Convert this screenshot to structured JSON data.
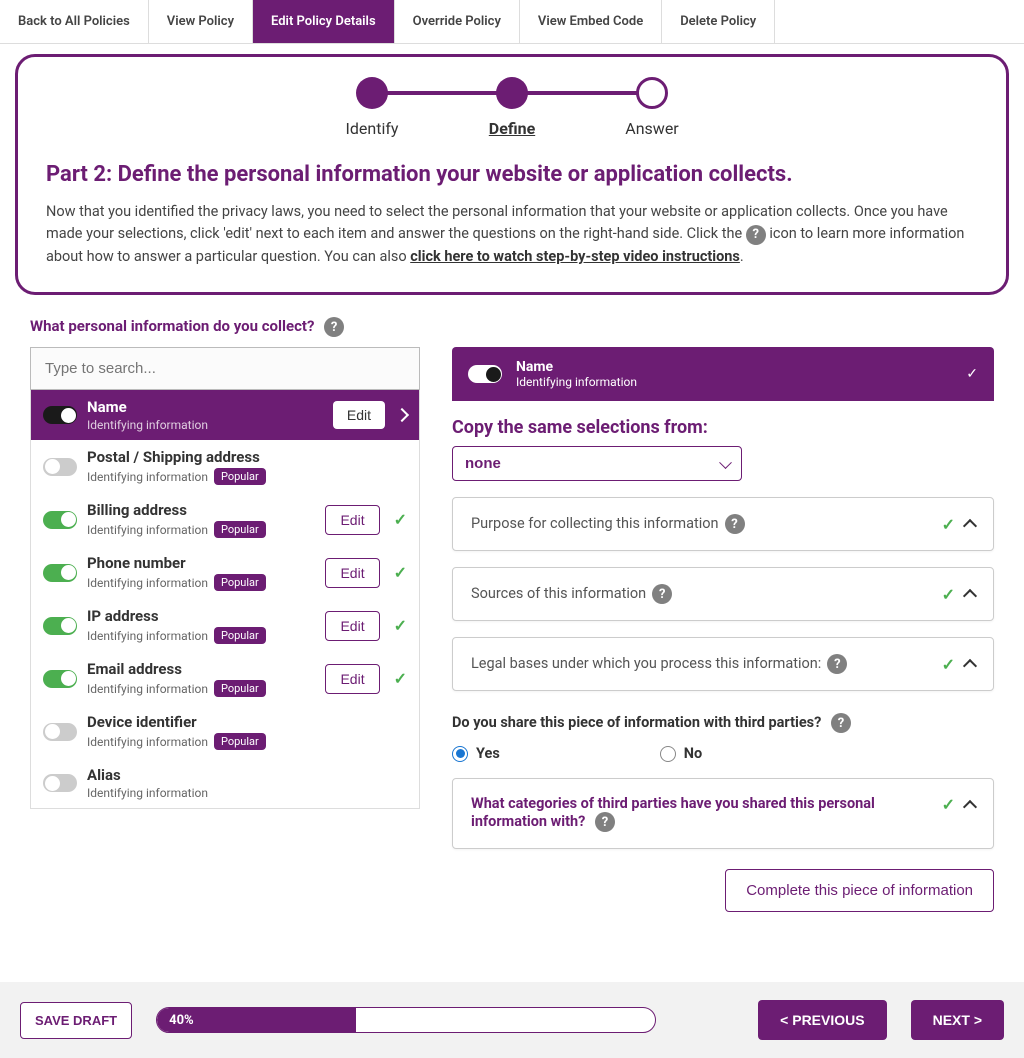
{
  "tabs": [
    {
      "label": "Back to All Policies",
      "active": false
    },
    {
      "label": "View Policy",
      "active": false
    },
    {
      "label": "Edit Policy Details",
      "active": true
    },
    {
      "label": "Override Policy",
      "active": false
    },
    {
      "label": "View Embed Code",
      "active": false
    },
    {
      "label": "Delete Policy",
      "active": false
    }
  ],
  "stepper": {
    "steps": [
      {
        "label": "Identify",
        "filled": true,
        "active": false
      },
      {
        "label": "Define",
        "filled": true,
        "active": true
      },
      {
        "label": "Answer",
        "filled": false,
        "active": false
      }
    ]
  },
  "infobox": {
    "title": "Part 2: Define the personal information your website or application collects.",
    "text_before": "Now that you identified the privacy laws, you need to select the personal information that your website or application collects. Once you have made your selections, click 'edit' next to each item and answer the questions on the right-hand side. Click the ",
    "text_after": " icon to learn more information about how to answer a particular question. You can also ",
    "link": "click here to watch step-by-step video instructions",
    "period": "."
  },
  "question_label": "What personal information do you collect?",
  "search_placeholder": "Type to search...",
  "items": [
    {
      "title": "Name",
      "sub": "Identifying information",
      "toggle": "on-dark",
      "selected": true,
      "popular": false,
      "edit": true,
      "check": false,
      "chevron": true
    },
    {
      "title": "Postal / Shipping address",
      "sub": "Identifying information",
      "toggle": "off",
      "selected": false,
      "popular": true,
      "edit": false,
      "check": false
    },
    {
      "title": "Billing address",
      "sub": "Identifying information",
      "toggle": "on",
      "selected": false,
      "popular": true,
      "edit": true,
      "check": true
    },
    {
      "title": "Phone number",
      "sub": "Identifying information",
      "toggle": "on",
      "selected": false,
      "popular": true,
      "edit": true,
      "check": true
    },
    {
      "title": "IP address",
      "sub": "Identifying information",
      "toggle": "on",
      "selected": false,
      "popular": true,
      "edit": true,
      "check": true
    },
    {
      "title": "Email address",
      "sub": "Identifying information",
      "toggle": "on",
      "selected": false,
      "popular": true,
      "edit": true,
      "check": true
    },
    {
      "title": "Device identifier",
      "sub": "Identifying information",
      "toggle": "off",
      "selected": false,
      "popular": true,
      "edit": false,
      "check": false
    },
    {
      "title": "Alias",
      "sub": "Identifying information",
      "toggle": "off",
      "selected": false,
      "popular": false,
      "edit": false,
      "check": false
    }
  ],
  "edit_label": "Edit",
  "popular_label": "Popular",
  "detail": {
    "title": "Name",
    "sub": "Identifying information",
    "copy_label": "Copy the same selections from:",
    "copy_value": "none",
    "accordions": [
      {
        "title": "Purpose for collecting this information",
        "check": true
      },
      {
        "title": "Sources of this information",
        "check": true
      },
      {
        "title": "Legal bases under which you process this information:",
        "check": true
      }
    ],
    "share_question": "Do you share this piece of information with third parties?",
    "share_yes": "Yes",
    "share_no": "No",
    "share_value": "yes",
    "third_party_q": "What categories of third parties have you shared this personal information with?",
    "complete_btn": "Complete this piece of information"
  },
  "footer": {
    "save_draft": "SAVE DRAFT",
    "progress_pct": 40,
    "progress_label": "40%",
    "prev": "< PREVIOUS",
    "next": "NEXT >"
  },
  "colors": {
    "primary": "#6c1d73",
    "green": "#4caf50",
    "grey": "#808080"
  }
}
